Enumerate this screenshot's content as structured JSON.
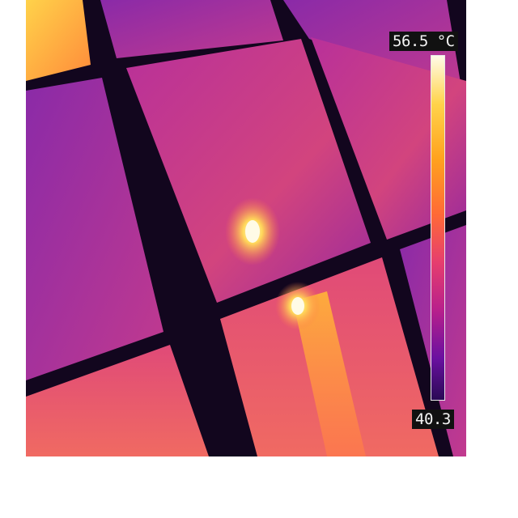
{
  "thermal_image": {
    "palette": "iron",
    "scale": {
      "max_label": "56.5 °C",
      "min_label": "40.3",
      "max_value": 56.5,
      "min_value": 40.3,
      "unit": "°C"
    },
    "colors": {
      "frame_gap": "#0a0410",
      "cell_base": "#9a2a9a",
      "warm": "#e8506a",
      "hot": "#ffd25a",
      "hotspot": "#fffbe0"
    }
  }
}
